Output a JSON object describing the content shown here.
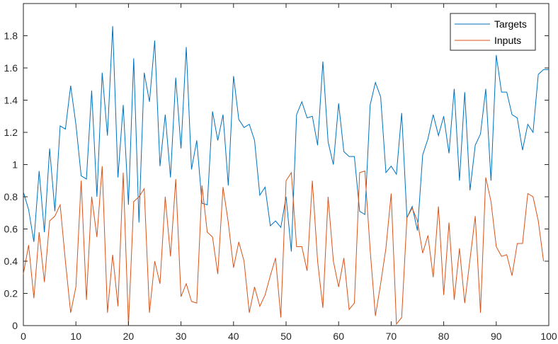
{
  "chart_data": {
    "type": "line",
    "title": "",
    "xlabel": "",
    "ylabel": "",
    "xlim": [
      0,
      100
    ],
    "ylim": [
      0,
      2
    ],
    "xticks": [
      0,
      10,
      20,
      30,
      40,
      50,
      60,
      70,
      80,
      90,
      100
    ],
    "yticks": [
      0,
      0.2,
      0.4,
      0.6,
      0.8,
      1,
      1.2,
      1.4,
      1.6,
      1.8
    ],
    "ytick_labels": [
      "0",
      "0.2",
      "0.4",
      "0.6",
      "0.8",
      "1",
      "1.2",
      "1.4",
      "1.6",
      "1.8"
    ],
    "grid": false,
    "legend_position": "top-right",
    "series": [
      {
        "name": "Targets",
        "color": "#0072BD",
        "values": [
          0.83,
          0.72,
          0.52,
          0.96,
          0.58,
          1.1,
          0.71,
          1.24,
          1.22,
          1.49,
          1.25,
          0.93,
          0.91,
          1.46,
          0.8,
          1.57,
          1.18,
          1.86,
          0.92,
          1.37,
          0.75,
          1.66,
          0.64,
          1.57,
          1.39,
          1.77,
          0.99,
          1.31,
          0.92,
          1.54,
          1.1,
          1.73,
          0.97,
          1.15,
          0.76,
          0.75,
          1.33,
          1.15,
          1.31,
          0.87,
          1.55,
          1.28,
          1.23,
          1.25,
          1.15,
          0.81,
          0.86,
          0.62,
          0.65,
          0.61,
          0.8,
          0.46,
          1.31,
          1.39,
          1.29,
          1.3,
          1.12,
          1.64,
          1.14,
          1.0,
          1.38,
          1.08,
          1.05,
          1.05,
          0.71,
          0.69,
          1.37,
          1.51,
          1.42,
          0.95,
          0.99,
          0.94,
          1.32,
          0.67,
          0.74,
          0.59,
          1.06,
          1.16,
          1.31,
          1.18,
          1.3,
          1.07,
          1.47,
          0.9,
          1.45,
          0.84,
          1.12,
          1.19,
          1.47,
          0.9,
          1.68,
          1.45,
          1.45,
          1.31,
          1.29,
          1.09,
          1.25,
          1.2,
          1.56,
          1.59,
          1.59
        ]
      },
      {
        "name": "Inputs",
        "color": "#D95319",
        "values": [
          0.32,
          0.5,
          0.17,
          0.58,
          0.27,
          0.65,
          0.68,
          0.75,
          0.4,
          0.08,
          0.24,
          0.9,
          0.16,
          0.8,
          0.55,
          0.99,
          0.08,
          0.44,
          0.12,
          0.95,
          0.0,
          0.77,
          0.8,
          0.85,
          0.08,
          0.4,
          0.26,
          0.8,
          0.43,
          0.91,
          0.18,
          0.26,
          0.15,
          0.14,
          0.87,
          0.58,
          0.55,
          0.32,
          0.86,
          0.64,
          0.36,
          0.52,
          0.4,
          0.08,
          0.24,
          0.12,
          0.19,
          0.31,
          0.42,
          0.05,
          0.9,
          0.95,
          0.49,
          0.49,
          0.34,
          0.9,
          0.4,
          0.11,
          0.8,
          0.4,
          0.24,
          0.42,
          0.1,
          0.14,
          0.95,
          0.96,
          0.47,
          0.06,
          0.26,
          0.48,
          0.82,
          0.01,
          0.05,
          0.67,
          0.73,
          0.65,
          0.45,
          0.56,
          0.3,
          0.74,
          0.19,
          0.64,
          0.16,
          0.48,
          0.14,
          0.41,
          0.68,
          0.08,
          0.92,
          0.77,
          0.49,
          0.43,
          0.44,
          0.31,
          0.51,
          0.51,
          0.82,
          0.8,
          0.65,
          0.4
        ]
      }
    ]
  }
}
